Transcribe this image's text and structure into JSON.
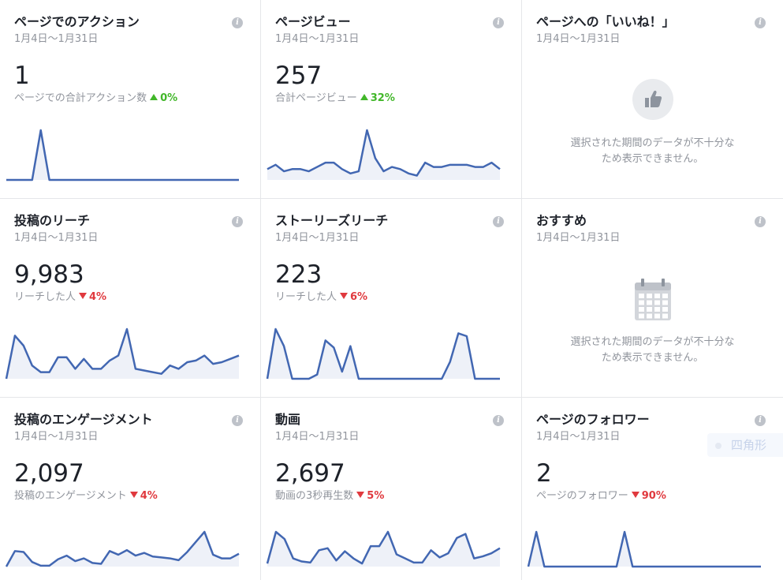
{
  "cards": [
    {
      "title": "ページでのアクション",
      "date": "1月4日～1月31日",
      "value": "1",
      "label": "ページでの合計アクション数",
      "delta": "0%",
      "trend": "up",
      "series": [
        0,
        0,
        0,
        0,
        1,
        0,
        0,
        0,
        0,
        0,
        0,
        0,
        0,
        0,
        0,
        0,
        0,
        0,
        0,
        0,
        0,
        0,
        0,
        0,
        0,
        0,
        0,
        0
      ]
    },
    {
      "title": "ページビュー",
      "date": "1月4日～1月31日",
      "value": "257",
      "label": "合計ページビュー",
      "delta": "32%",
      "trend": "up",
      "series": [
        5,
        7,
        4,
        5,
        5,
        4,
        6,
        8,
        8,
        5,
        3,
        4,
        23,
        10,
        4,
        6,
        5,
        3,
        2,
        8,
        6,
        6,
        7,
        7,
        7,
        6,
        6,
        8,
        5
      ]
    },
    {
      "title": "ページへの「いいね！」",
      "date": "1月4日～1月31日",
      "empty": "選択された期間のデータが不十分なため表示できません。",
      "icon": "thumbs-up-icon"
    },
    {
      "title": "投稿のリーチ",
      "date": "1月4日～1月31日",
      "value": "9,983",
      "label": "リーチした人",
      "delta": "4%",
      "trend": "down",
      "series": [
        0,
        26,
        20,
        8,
        4,
        4,
        13,
        13,
        6,
        12,
        6,
        6,
        11,
        14,
        30,
        6,
        5,
        4,
        3,
        8,
        6,
        10,
        11,
        14,
        9,
        10,
        12,
        14
      ]
    },
    {
      "title": "ストーリーズリーチ",
      "date": "1月4日～1月31日",
      "value": "223",
      "label": "リーチした人",
      "delta": "6%",
      "trend": "down",
      "series": [
        0,
        35,
        23,
        0,
        0,
        0,
        3,
        27,
        22,
        5,
        23,
        0,
        0,
        0,
        0,
        0,
        0,
        0,
        0,
        0,
        0,
        0,
        12,
        32,
        30,
        0,
        0,
        0,
        0
      ]
    },
    {
      "title": "おすすめ",
      "date": "1月4日～1月31日",
      "empty": "選択された期間のデータが不十分なため表示できません。",
      "icon": "calendar-icon"
    },
    {
      "title": "投稿のエンゲージメント",
      "date": "1月4日～1月31日",
      "value": "2,097",
      "label": "投稿のエンゲージメント",
      "delta": "4%",
      "trend": "down",
      "series": [
        0,
        17,
        16,
        5,
        1,
        1,
        8,
        12,
        6,
        9,
        4,
        3,
        17,
        13,
        18,
        12,
        15,
        11,
        10,
        9,
        7,
        16,
        27,
        38,
        13,
        9,
        9,
        14
      ]
    },
    {
      "title": "動画",
      "date": "1月4日～1月31日",
      "value": "2,697",
      "label": "動画の3秒再生数",
      "delta": "5%",
      "trend": "down",
      "series": [
        3,
        34,
        27,
        8,
        5,
        4,
        16,
        18,
        6,
        15,
        8,
        3,
        20,
        20,
        34,
        12,
        8,
        4,
        4,
        16,
        9,
        13,
        28,
        32,
        8,
        10,
        13,
        18
      ]
    },
    {
      "title": "ページのフォロワー",
      "date": "1月4日～1月31日",
      "value": "2",
      "label": "ページのフォロワー",
      "delta": "90%",
      "trend": "down",
      "series": [
        0,
        1,
        0,
        0,
        0,
        0,
        0,
        0,
        0,
        0,
        0,
        0,
        1,
        0,
        0,
        0,
        0,
        0,
        0,
        0,
        0,
        0,
        0,
        0,
        0,
        0,
        0,
        0,
        0,
        0
      ]
    }
  ],
  "info_glyph": "i",
  "tooltip_label": "四角形",
  "colors": {
    "line": "#4267b2",
    "fill": "#eef1f8",
    "up": "#42b72a",
    "down": "#e0393e"
  }
}
